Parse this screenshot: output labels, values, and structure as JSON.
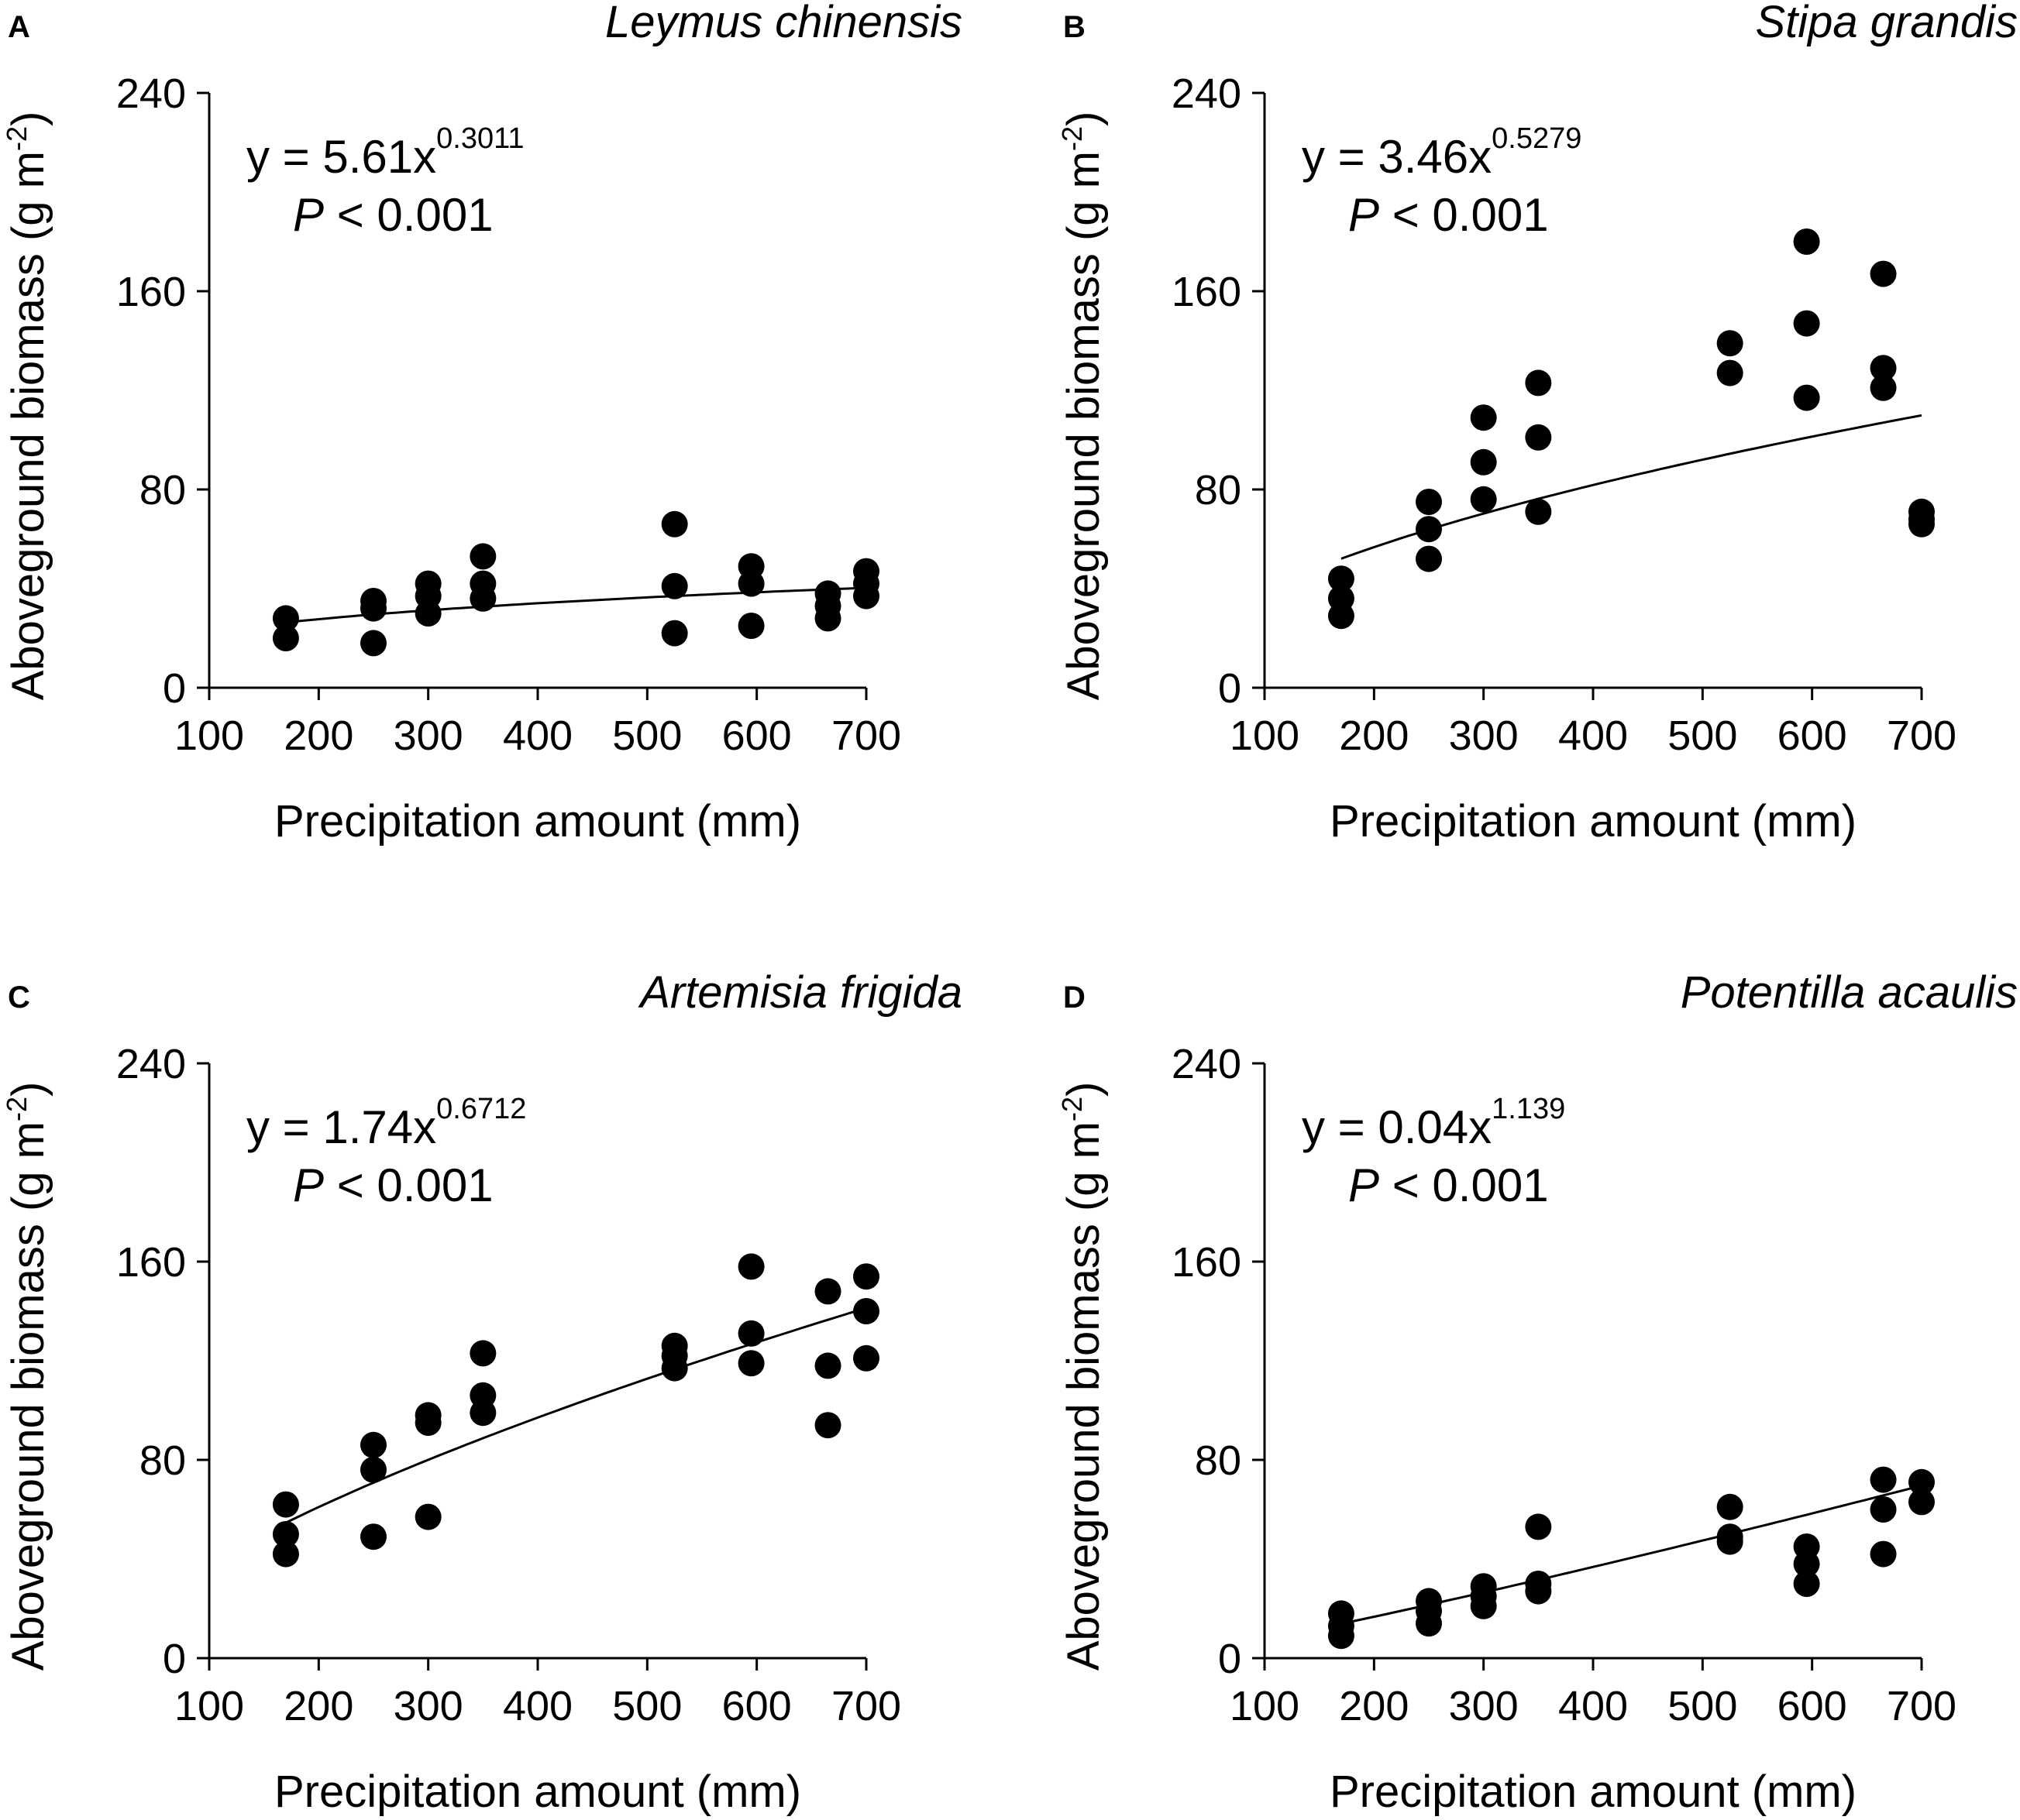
{
  "chart_data": [
    {
      "panel_label": "A",
      "species": "Leymus chinensis",
      "type": "scatter",
      "xlabel": "Precipitation amount (mm)",
      "ylabel_main": "Aboveground biomass (g m",
      "ylabel_sup": "-2",
      "ylabel_close": ")",
      "xlim": [
        100,
        700
      ],
      "ylim": [
        0,
        240
      ],
      "xticks": [
        100,
        200,
        300,
        400,
        500,
        600,
        700
      ],
      "yticks": [
        0,
        80,
        160,
        240
      ],
      "equation_prefix": "y = 5.61x",
      "equation_exponent": "0.3011",
      "p_label": "P",
      "p_rest": " < 0.001",
      "fit": {
        "a": 5.61,
        "b": 0.3011
      },
      "points": [
        [
          170,
          28
        ],
        [
          170,
          20
        ],
        [
          250,
          35
        ],
        [
          250,
          32
        ],
        [
          250,
          18
        ],
        [
          300,
          42
        ],
        [
          300,
          37
        ],
        [
          300,
          30
        ],
        [
          350,
          53
        ],
        [
          350,
          42
        ],
        [
          350,
          36
        ],
        [
          525,
          66
        ],
        [
          525,
          41
        ],
        [
          525,
          22
        ],
        [
          595,
          49
        ],
        [
          595,
          42
        ],
        [
          595,
          25
        ],
        [
          665,
          38
        ],
        [
          665,
          33
        ],
        [
          665,
          28
        ],
        [
          700,
          47
        ],
        [
          700,
          42
        ],
        [
          700,
          37
        ]
      ]
    },
    {
      "panel_label": "B",
      "species": "Stipa grandis",
      "type": "scatter",
      "xlabel": "Precipitation amount (mm)",
      "ylabel_main": "Aboveground biomass (g m",
      "ylabel_sup": "-2",
      "ylabel_close": ")",
      "xlim": [
        100,
        700
      ],
      "ylim": [
        0,
        240
      ],
      "xticks": [
        100,
        200,
        300,
        400,
        500,
        600,
        700
      ],
      "yticks": [
        0,
        80,
        160,
        240
      ],
      "equation_prefix": "y = 3.46x",
      "equation_exponent": "0.5279",
      "p_label": "P",
      "p_rest": " < 0.001",
      "fit": {
        "a": 3.46,
        "b": 0.5279
      },
      "points": [
        [
          170,
          44
        ],
        [
          170,
          36
        ],
        [
          170,
          29
        ],
        [
          250,
          75
        ],
        [
          250,
          64
        ],
        [
          250,
          52
        ],
        [
          300,
          109
        ],
        [
          300,
          91
        ],
        [
          300,
          76
        ],
        [
          350,
          123
        ],
        [
          350,
          101
        ],
        [
          350,
          71
        ],
        [
          525,
          139
        ],
        [
          525,
          127
        ],
        [
          595,
          180
        ],
        [
          595,
          147
        ],
        [
          595,
          117
        ],
        [
          665,
          167
        ],
        [
          665,
          129
        ],
        [
          665,
          121
        ],
        [
          700,
          71
        ],
        [
          700,
          68
        ],
        [
          700,
          66
        ]
      ]
    },
    {
      "panel_label": "C",
      "species": "Artemisia frigida",
      "type": "scatter",
      "xlabel": "Precipitation amount (mm)",
      "ylabel_main": "Aboveground biomass (g m",
      "ylabel_sup": "-2",
      "ylabel_close": ")",
      "xlim": [
        100,
        700
      ],
      "ylim": [
        0,
        240
      ],
      "xticks": [
        100,
        200,
        300,
        400,
        500,
        600,
        700
      ],
      "yticks": [
        0,
        80,
        160,
        240
      ],
      "equation_prefix": "y = 1.74x",
      "equation_exponent": "0.6712",
      "p_label": "P",
      "p_rest": " < 0.001",
      "fit": {
        "a": 1.74,
        "b": 0.6712
      },
      "points": [
        [
          170,
          62
        ],
        [
          170,
          50
        ],
        [
          170,
          42
        ],
        [
          250,
          86
        ],
        [
          250,
          76
        ],
        [
          250,
          49
        ],
        [
          300,
          98
        ],
        [
          300,
          95
        ],
        [
          300,
          57
        ],
        [
          350,
          123
        ],
        [
          350,
          106
        ],
        [
          350,
          99
        ],
        [
          525,
          126
        ],
        [
          525,
          122
        ],
        [
          525,
          117
        ],
        [
          595,
          158
        ],
        [
          595,
          131
        ],
        [
          595,
          119
        ],
        [
          665,
          148
        ],
        [
          665,
          118
        ],
        [
          665,
          94
        ],
        [
          700,
          154
        ],
        [
          700,
          140
        ],
        [
          700,
          121
        ]
      ]
    },
    {
      "panel_label": "D",
      "species": "Potentilla acaulis",
      "type": "scatter",
      "xlabel": "Precipitation amount (mm)",
      "ylabel_main": "Aboveground biomass (g m",
      "ylabel_sup": "-2",
      "ylabel_close": ")",
      "xlim": [
        100,
        700
      ],
      "ylim": [
        0,
        240
      ],
      "xticks": [
        100,
        200,
        300,
        400,
        500,
        600,
        700
      ],
      "yticks": [
        0,
        80,
        160,
        240
      ],
      "equation_prefix": "y = 0.04x",
      "equation_exponent": "1.139",
      "p_label": "P",
      "p_rest": " < 0.001",
      "fit": {
        "a": 0.04,
        "b": 1.139
      },
      "points": [
        [
          170,
          18
        ],
        [
          170,
          13
        ],
        [
          170,
          9
        ],
        [
          250,
          23
        ],
        [
          250,
          19
        ],
        [
          250,
          14
        ],
        [
          300,
          29
        ],
        [
          300,
          25
        ],
        [
          300,
          21
        ],
        [
          350,
          53
        ],
        [
          350,
          30
        ],
        [
          350,
          27
        ],
        [
          525,
          61
        ],
        [
          525,
          49
        ],
        [
          525,
          47
        ],
        [
          595,
          45
        ],
        [
          595,
          38
        ],
        [
          595,
          30
        ],
        [
          665,
          72
        ],
        [
          665,
          60
        ],
        [
          665,
          42
        ],
        [
          700,
          71
        ],
        [
          700,
          63
        ]
      ]
    }
  ]
}
